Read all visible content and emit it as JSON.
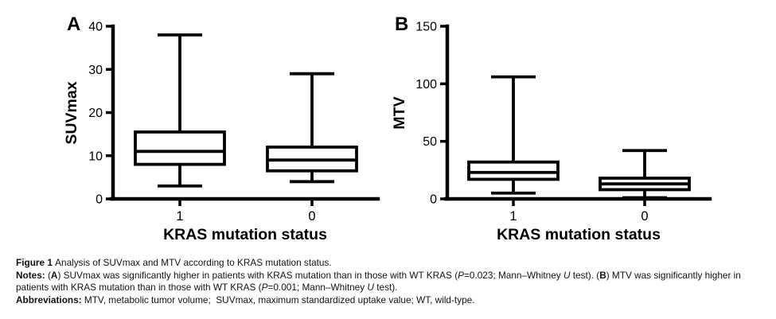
{
  "chart_data": [
    {
      "type": "boxplot",
      "panel_label": "A",
      "ylabel": "SUVmax",
      "xlabel": "KRAS mutation status",
      "ylim": [
        0,
        40
      ],
      "yticks": [
        0,
        10,
        20,
        30,
        40
      ],
      "categories": [
        "1",
        "0"
      ],
      "boxes": [
        {
          "category": "1",
          "whisker_min": 3,
          "q1": 8,
          "median": 11,
          "q3": 15.5,
          "whisker_max": 38
        },
        {
          "category": "0",
          "whisker_min": 4,
          "q1": 6.5,
          "median": 9,
          "q3": 12,
          "whisker_max": 29
        }
      ],
      "line_color": "#000000",
      "box_fill": "#ffffff",
      "grid": false,
      "legend": false
    },
    {
      "type": "boxplot",
      "panel_label": "B",
      "ylabel": "MTV",
      "xlabel": "KRAS mutation status",
      "ylim": [
        0,
        150
      ],
      "yticks": [
        0,
        50,
        100,
        150
      ],
      "categories": [
        "1",
        "0"
      ],
      "boxes": [
        {
          "category": "1",
          "whisker_min": 5,
          "q1": 17,
          "median": 23,
          "q3": 32,
          "whisker_max": 106
        },
        {
          "category": "0",
          "whisker_min": 1,
          "q1": 8,
          "median": 13,
          "q3": 18,
          "whisker_max": 42
        }
      ],
      "line_color": "#000000",
      "box_fill": "#ffffff",
      "grid": false,
      "legend": false
    }
  ],
  "caption": {
    "figure_line": [
      {
        "t": "Figure 1 ",
        "b": true
      },
      {
        "t": "Analysis of SUVmax and MTV according to KRAS mutation status."
      }
    ],
    "notes_line": [
      {
        "t": "Notes: ",
        "b": true
      },
      {
        "t": "("
      },
      {
        "t": "A",
        "b": true
      },
      {
        "t": ") SUVmax was significantly higher in patients with KRAS mutation than in those with WT KRAS ("
      },
      {
        "t": "P",
        "i": true
      },
      {
        "t": "=0.023; Mann–Whitney "
      },
      {
        "t": "U",
        "i": true
      },
      {
        "t": " test). ("
      },
      {
        "t": "B",
        "b": true
      },
      {
        "t": ") MTV was significantly higher in patients with KRAS mutation than in those with WT KRAS ("
      },
      {
        "t": "P",
        "i": true
      },
      {
        "t": "=0.001; Mann–Whitney "
      },
      {
        "t": "U",
        "i": true
      },
      {
        "t": " test)."
      }
    ],
    "abbreviations_line": [
      {
        "t": "Abbreviations: ",
        "b": true
      },
      {
        "t": "MTV, metabolic tumor volume;  SUVmax, maximum standardized uptake value; WT, wild-type."
      }
    ]
  }
}
